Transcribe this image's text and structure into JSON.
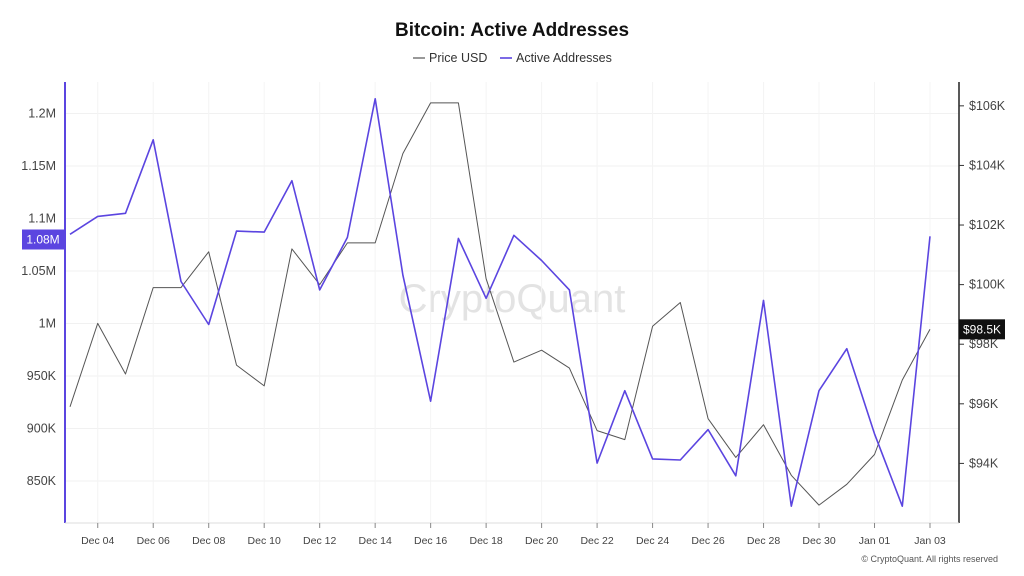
{
  "chart_data": {
    "type": "line",
    "title": "Bitcoin: Active Addresses",
    "legend_position": "top-center",
    "grid": true,
    "x": [
      "Dec 03",
      "Dec 04",
      "Dec 05",
      "Dec 06",
      "Dec 07",
      "Dec 08",
      "Dec 09",
      "Dec 10",
      "Dec 11",
      "Dec 12",
      "Dec 13",
      "Dec 14",
      "Dec 15",
      "Dec 16",
      "Dec 17",
      "Dec 18",
      "Dec 19",
      "Dec 20",
      "Dec 21",
      "Dec 22",
      "Dec 23",
      "Dec 24",
      "Dec 25",
      "Dec 26",
      "Dec 27",
      "Dec 28",
      "Dec 29",
      "Dec 30",
      "Dec 31",
      "Jan 01",
      "Jan 02",
      "Jan 03"
    ],
    "x_tick_labels": [
      "Dec 04",
      "Dec 06",
      "Dec 08",
      "Dec 10",
      "Dec 12",
      "Dec 14",
      "Dec 16",
      "Dec 18",
      "Dec 20",
      "Dec 22",
      "Dec 24",
      "Dec 26",
      "Dec 28",
      "Dec 30",
      "Jan 01",
      "Jan 03"
    ],
    "series": [
      {
        "name": "Price USD",
        "axis": "right",
        "color": "#555555",
        "values": [
          95900,
          98700,
          97000,
          99900,
          99900,
          101100,
          97300,
          96600,
          101200,
          100000,
          101400,
          101400,
          104400,
          106100,
          106100,
          100200,
          97400,
          97800,
          97200,
          95100,
          94800,
          98600,
          99400,
          95500,
          94200,
          95300,
          93600,
          92600,
          93300,
          94300,
          96800,
          98500
        ]
      },
      {
        "name": "Active Addresses",
        "axis": "left",
        "color": "#5b45e0",
        "values": [
          1085000,
          1102000,
          1105000,
          1175000,
          1040000,
          999000,
          1088000,
          1087000,
          1136000,
          1032000,
          1082000,
          1214000,
          1046000,
          926000,
          1081000,
          1024000,
          1084000,
          1060000,
          1032000,
          867000,
          936000,
          871000,
          870000,
          899000,
          855000,
          1022000,
          826000,
          936000,
          976000,
          895000,
          826000,
          1083000
        ]
      }
    ],
    "y_left": {
      "ticks": [
        "1.2M",
        "1.15M",
        "1.1M",
        "1.05M",
        "1M",
        "950K",
        "900K",
        "850K"
      ],
      "range": [
        810000,
        1230000
      ]
    },
    "y_right": {
      "ticks": [
        "$106K",
        "$104K",
        "$102K",
        "$100K",
        "$98K",
        "$96K",
        "$94K"
      ],
      "range": [
        92000,
        106800
      ]
    },
    "badge_left": "1.08M",
    "badge_right": "$98.5K",
    "watermark": "CryptoQuant",
    "copyright": "© CryptoQuant. All rights reserved"
  }
}
